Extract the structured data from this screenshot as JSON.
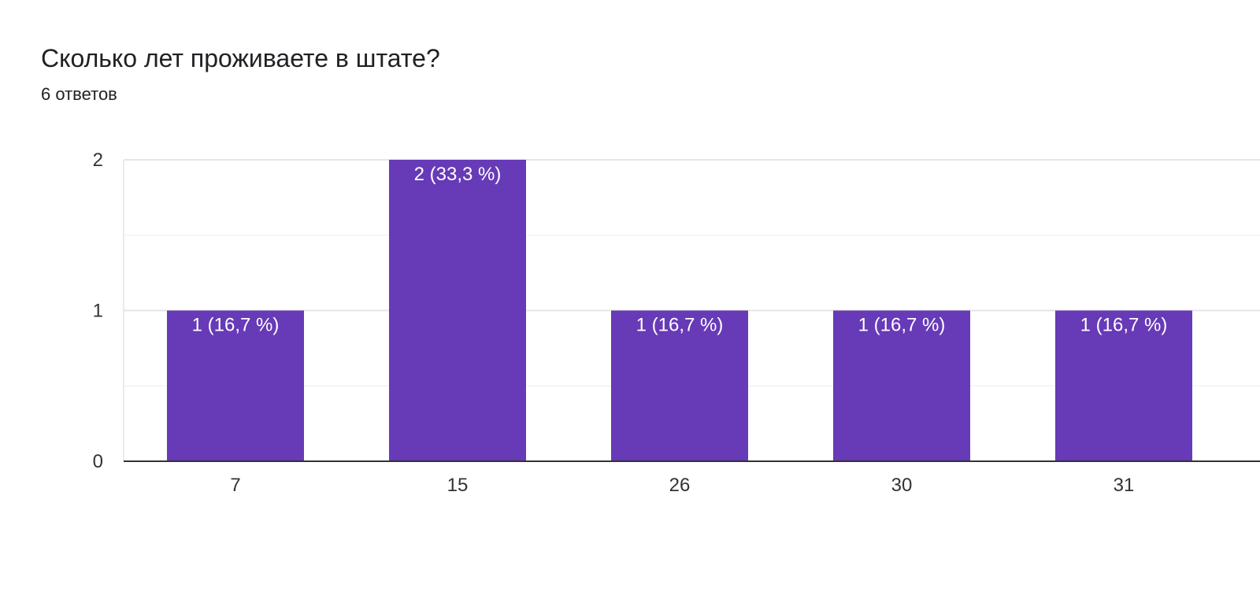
{
  "header": {
    "title": "Сколько лет проживаете в штате?",
    "responses": "6 ответов"
  },
  "colors": {
    "bar": "#673ab7",
    "grid": "#ebebeb",
    "axis": "#333333"
  },
  "chart_data": {
    "type": "bar",
    "title": "",
    "xlabel": "",
    "ylabel": "",
    "categories": [
      "7",
      "15",
      "26",
      "30",
      "31"
    ],
    "values": [
      1,
      2,
      1,
      1,
      1
    ],
    "data_labels": [
      "1 (16,7 %)",
      "2 (33,3 %)",
      "1 (16,7 %)",
      "1 (16,7 %)",
      "1 (16,7 %)"
    ],
    "y_ticks": [
      "0",
      "1",
      "2"
    ],
    "ylim": [
      0,
      2
    ],
    "grid": true
  }
}
